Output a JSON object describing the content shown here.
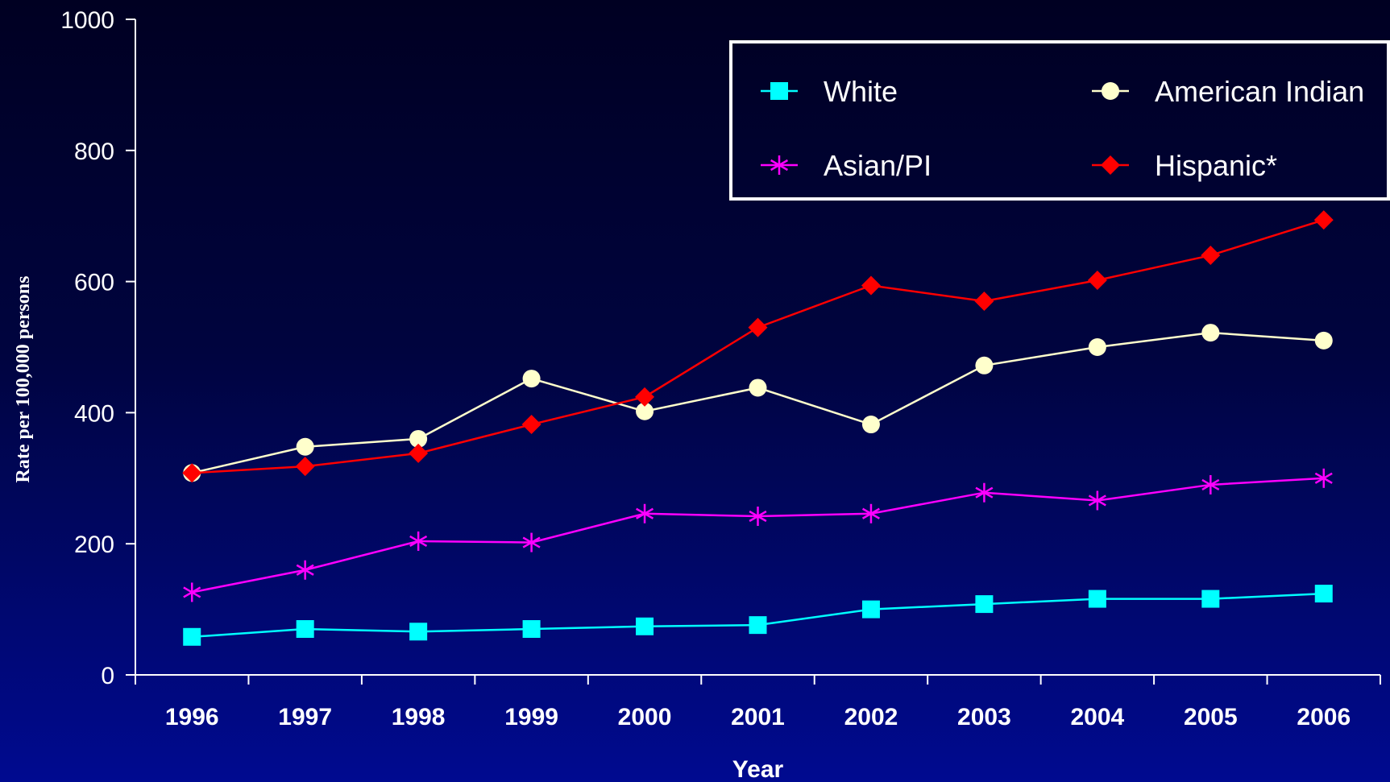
{
  "chart_data": {
    "type": "line",
    "xlabel": "Year",
    "ylabel": "Rate per 100,000 persons",
    "x": [
      "1996",
      "1997",
      "1998",
      "1999",
      "2000",
      "2001",
      "2002",
      "2003",
      "2004",
      "2005",
      "2006"
    ],
    "ylim": [
      0,
      1000
    ],
    "yticks": [
      "0",
      "200",
      "400",
      "600",
      "800",
      "1000"
    ],
    "legend_position": "top-right",
    "grid": false,
    "series": [
      {
        "name": "White",
        "color": "#00ffff",
        "marker": "square",
        "values": [
          58,
          70,
          66,
          70,
          74,
          76,
          100,
          108,
          116,
          116,
          124
        ]
      },
      {
        "name": "American Indian",
        "color": "#ffffcc",
        "marker": "circle",
        "values": [
          308,
          348,
          360,
          452,
          402,
          438,
          382,
          472,
          500,
          522,
          510
        ]
      },
      {
        "name": "Asian/PI",
        "color": "#ff00ff",
        "marker": "asterisk",
        "values": [
          126,
          160,
          204,
          202,
          246,
          242,
          246,
          278,
          266,
          290,
          300
        ]
      },
      {
        "name": "Hispanic*",
        "color": "#ff0000",
        "marker": "diamond",
        "values": [
          308,
          318,
          338,
          382,
          424,
          530,
          594,
          570,
          602,
          640,
          694
        ]
      }
    ]
  }
}
